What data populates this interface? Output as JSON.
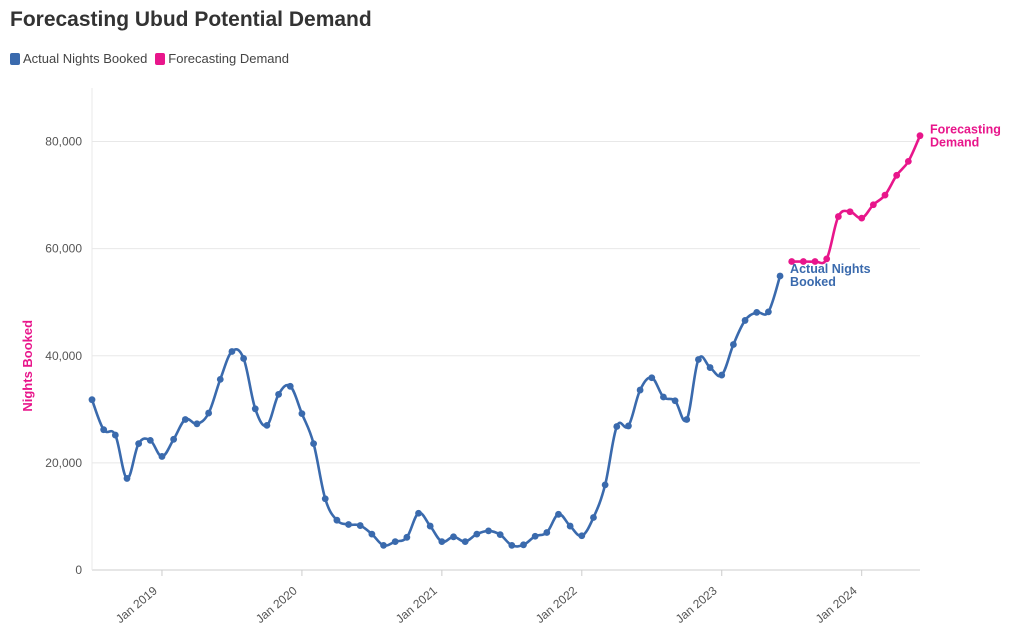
{
  "title": "Forecasting Ubud Potential Demand",
  "colors": {
    "actual": "#3a6aad",
    "forecast": "#e8168b",
    "grid": "#e8e8e8",
    "axis": "#cccccc"
  },
  "chart_data": {
    "type": "line",
    "title": "Forecasting Ubud Potential Demand",
    "xlabel": "",
    "ylabel": "Nights Booked",
    "ylim": [
      0,
      90000
    ],
    "yticks": [
      0,
      20000,
      40000,
      60000,
      80000
    ],
    "ytick_labels": [
      "0",
      "20,000",
      "40,000",
      "60,000",
      "80,000"
    ],
    "xticks": [
      "2019-01",
      "2020-01",
      "2021-01",
      "2022-01",
      "2023-01",
      "2024-01"
    ],
    "xtick_labels": [
      "Jan 2019",
      "Jan 2020",
      "Jan 2021",
      "Jan 2022",
      "Jan 2023",
      "Jan 2024"
    ],
    "grid": true,
    "legend_position": "top-left",
    "series": [
      {
        "name": "Actual Nights Booked",
        "end_label": "Actual Nights\nBooked",
        "color": "#3a6aad",
        "x": [
          "2018-07",
          "2018-08",
          "2018-09",
          "2018-10",
          "2018-11",
          "2018-12",
          "2019-01",
          "2019-02",
          "2019-03",
          "2019-04",
          "2019-05",
          "2019-06",
          "2019-07",
          "2019-08",
          "2019-09",
          "2019-10",
          "2019-11",
          "2019-12",
          "2020-01",
          "2020-02",
          "2020-03",
          "2020-04",
          "2020-05",
          "2020-06",
          "2020-07",
          "2020-08",
          "2020-09",
          "2020-10",
          "2020-11",
          "2020-12",
          "2021-01",
          "2021-02",
          "2021-03",
          "2021-04",
          "2021-05",
          "2021-06",
          "2021-07",
          "2021-08",
          "2021-09",
          "2021-10",
          "2021-11",
          "2021-12",
          "2022-01",
          "2022-02",
          "2022-03",
          "2022-04",
          "2022-05",
          "2022-06",
          "2022-07",
          "2022-08",
          "2022-09",
          "2022-10",
          "2022-11",
          "2022-12",
          "2023-01",
          "2023-02",
          "2023-03",
          "2023-04",
          "2023-05",
          "2023-06"
        ],
        "values": [
          31800,
          26200,
          25200,
          17100,
          23600,
          24200,
          21200,
          24400,
          28100,
          27300,
          29300,
          35600,
          40800,
          39500,
          30100,
          27000,
          32800,
          34300,
          29200,
          23600,
          13300,
          9300,
          8500,
          8300,
          6700,
          4600,
          5300,
          6100,
          10600,
          8200,
          5300,
          6200,
          5300,
          6700,
          7300,
          6600,
          4600,
          4700,
          6300,
          7000,
          10400,
          8200,
          6400,
          9800,
          15900,
          26800,
          26900,
          33600,
          35900,
          32300,
          31600,
          28100,
          39300,
          37800,
          36400,
          42100,
          46600,
          48100,
          48200,
          54900
        ]
      },
      {
        "name": "Forecasting Demand",
        "end_label": "Forecasting\nDemand",
        "color": "#e8168b",
        "x": [
          "2023-07",
          "2023-08",
          "2023-09",
          "2023-10",
          "2023-11",
          "2023-12",
          "2024-01",
          "2024-02",
          "2024-03",
          "2024-04",
          "2024-05",
          "2024-06"
        ],
        "values": [
          57600,
          57600,
          57600,
          58100,
          66000,
          66900,
          65700,
          68200,
          70000,
          73700,
          76300,
          81100
        ]
      }
    ]
  }
}
